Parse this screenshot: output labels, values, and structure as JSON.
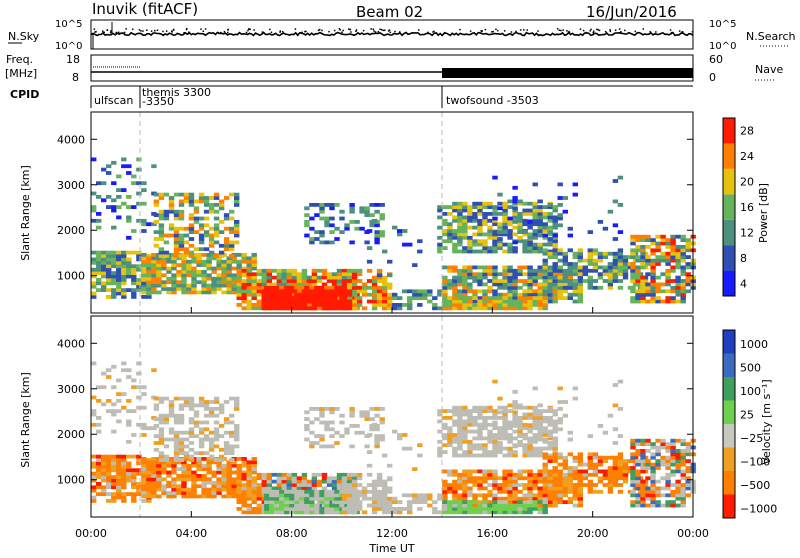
{
  "header": {
    "station": "Inuvik (fitACF)",
    "beam": "Beam 02",
    "date": "16/Jun/2016"
  },
  "top_panels": {
    "nsky_label": "N.Sky",
    "nsky_ticks": [
      "10^5",
      "10^0"
    ],
    "nsearch_label": "N.Search",
    "nsearch_ticks": [
      "10^5",
      "10^0"
    ],
    "freq_label": "Freq.",
    "freq_unit": "[MHz]",
    "freq_ticks": [
      "18",
      "8"
    ],
    "nave_label": "Nave",
    "nave_ticks": [
      "60",
      "0"
    ],
    "cpid_label": "CPID",
    "cpid_segments": [
      {
        "name": "ulfscan",
        "start": 0,
        "end": 1.85
      },
      {
        "name": "themis 3300",
        "start": 1.85,
        "end": 14.0,
        "sub": "-3350"
      },
      {
        "name": "twofsound -3503",
        "start": 14.0,
        "end": 24.0
      }
    ]
  },
  "chart_data": [
    {
      "type": "heatmap",
      "title": "",
      "ylabel": "Slant Range [km]",
      "xlabel": "",
      "x_ticks": [
        "00:00",
        "04:00",
        "08:00",
        "12:00",
        "16:00",
        "20:00",
        "00:00"
      ],
      "y_ticks": [
        1000,
        2000,
        3000,
        4000
      ],
      "xlim": [
        0,
        24
      ],
      "ylim": [
        180,
        4600
      ],
      "colorbar": {
        "label": "Power [dB]",
        "ticks": [
          "4",
          "8",
          "12",
          "16",
          "20",
          "24",
          "28"
        ],
        "colors": [
          "#1a1aff",
          "#2f4fb3",
          "#4d9080",
          "#66b35c",
          "#e6c20f",
          "#ff8000",
          "#ff1a00"
        ]
      }
    },
    {
      "type": "heatmap",
      "title": "",
      "ylabel": "Slant Range [km]",
      "xlabel": "Time UT",
      "x_ticks": [
        "00:00",
        "04:00",
        "08:00",
        "12:00",
        "16:00",
        "20:00",
        "00:00"
      ],
      "y_ticks": [
        1000,
        2000,
        3000,
        4000
      ],
      "xlim": [
        0,
        24
      ],
      "ylim": [
        180,
        4600
      ],
      "colorbar": {
        "label": "Velocity [m s⁻¹]",
        "ticks": [
          "1000",
          "500",
          "100",
          "25",
          "−25",
          "−100",
          "−500",
          "−1000"
        ],
        "colors": [
          "#1f3fc0",
          "#3b6bc0",
          "#3f9f5f",
          "#6fd04f",
          "#c8c8c0",
          "#f0a020",
          "#ff7f00",
          "#ff1a00"
        ]
      }
    }
  ],
  "colors": {
    "ground_scatter": "#bdbdb5",
    "dashed_line": "#bbbbbb"
  }
}
